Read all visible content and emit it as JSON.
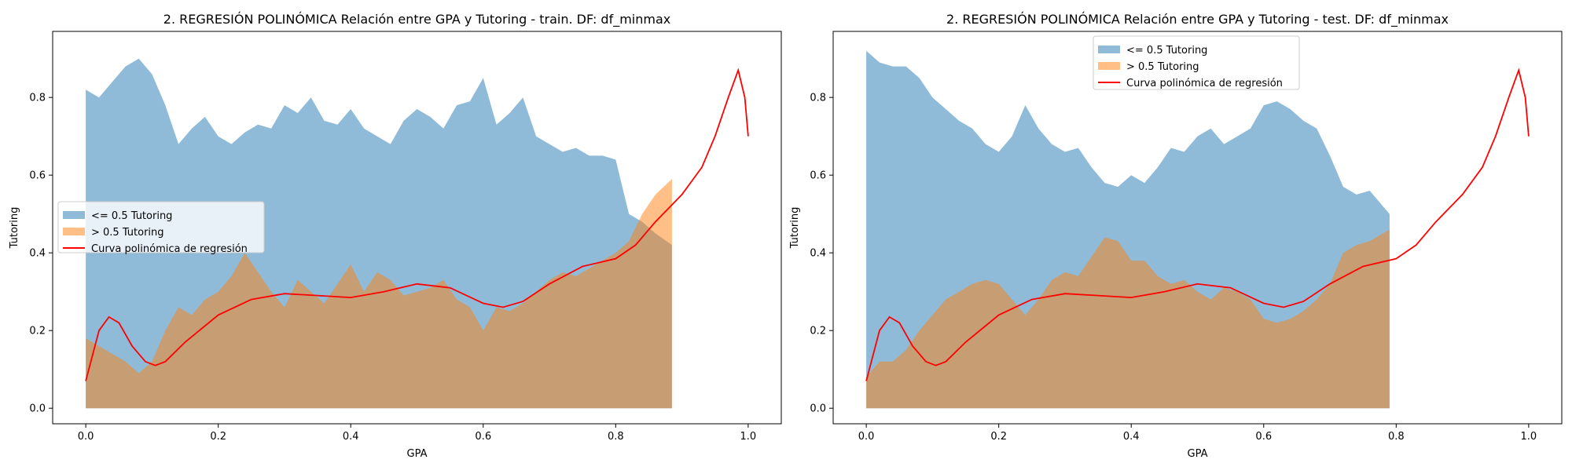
{
  "colors": {
    "blue": "#1f77b4",
    "orange": "#ff7f0e",
    "red": "#ff0000"
  },
  "chart_data": [
    {
      "type": "area",
      "title": "2. REGRESIÓN POLINÓMICA Relación entre GPA y Tutoring - train. DF: df_minmax",
      "xlabel": "GPA",
      "ylabel": "Tutoring",
      "xlim": [
        -0.05,
        1.05
      ],
      "ylim": [
        -0.04,
        0.97
      ],
      "xticks": [
        "0.0",
        "0.2",
        "0.4",
        "0.6",
        "0.8",
        "1.0"
      ],
      "yticks": [
        "0.0",
        "0.2",
        "0.4",
        "0.6",
        "0.8"
      ],
      "legend_position": "center-left",
      "legend": [
        "<= 0.5 Tutoring",
        "> 0.5 Tutoring",
        "Curva polinómica de regresión"
      ],
      "series": [
        {
          "name": "<= 0.5 Tutoring",
          "color": "blue",
          "x": [
            0.0,
            0.02,
            0.04,
            0.06,
            0.08,
            0.1,
            0.12,
            0.14,
            0.16,
            0.18,
            0.2,
            0.22,
            0.24,
            0.26,
            0.28,
            0.3,
            0.32,
            0.34,
            0.36,
            0.38,
            0.4,
            0.42,
            0.44,
            0.46,
            0.48,
            0.5,
            0.52,
            0.54,
            0.56,
            0.58,
            0.6,
            0.62,
            0.64,
            0.66,
            0.68,
            0.7,
            0.72,
            0.74,
            0.76,
            0.78,
            0.8,
            0.82,
            0.84,
            0.86,
            0.885
          ],
          "values": [
            0.82,
            0.8,
            0.84,
            0.88,
            0.9,
            0.86,
            0.78,
            0.68,
            0.72,
            0.75,
            0.7,
            0.68,
            0.71,
            0.73,
            0.72,
            0.78,
            0.76,
            0.8,
            0.74,
            0.73,
            0.77,
            0.72,
            0.7,
            0.68,
            0.74,
            0.77,
            0.75,
            0.72,
            0.78,
            0.79,
            0.85,
            0.73,
            0.76,
            0.8,
            0.7,
            0.68,
            0.66,
            0.67,
            0.65,
            0.65,
            0.64,
            0.5,
            0.48,
            0.45,
            0.42
          ]
        },
        {
          "name": "> 0.5 Tutoring",
          "color": "orange",
          "x": [
            0.0,
            0.02,
            0.04,
            0.06,
            0.08,
            0.1,
            0.12,
            0.14,
            0.16,
            0.18,
            0.2,
            0.22,
            0.24,
            0.26,
            0.28,
            0.3,
            0.32,
            0.34,
            0.36,
            0.38,
            0.4,
            0.42,
            0.44,
            0.46,
            0.48,
            0.5,
            0.52,
            0.54,
            0.56,
            0.58,
            0.6,
            0.62,
            0.64,
            0.66,
            0.68,
            0.7,
            0.72,
            0.74,
            0.76,
            0.78,
            0.8,
            0.82,
            0.84,
            0.86,
            0.885
          ],
          "values": [
            0.18,
            0.16,
            0.14,
            0.12,
            0.09,
            0.12,
            0.2,
            0.26,
            0.24,
            0.28,
            0.3,
            0.34,
            0.4,
            0.35,
            0.3,
            0.26,
            0.33,
            0.3,
            0.27,
            0.32,
            0.37,
            0.3,
            0.35,
            0.33,
            0.29,
            0.3,
            0.31,
            0.33,
            0.28,
            0.26,
            0.2,
            0.26,
            0.25,
            0.27,
            0.3,
            0.33,
            0.35,
            0.34,
            0.36,
            0.38,
            0.4,
            0.43,
            0.5,
            0.55,
            0.59
          ]
        },
        {
          "name": "Curva polinómica de regresión",
          "color": "red",
          "type": "line",
          "x": [
            0.0,
            0.02,
            0.035,
            0.05,
            0.07,
            0.09,
            0.105,
            0.12,
            0.15,
            0.2,
            0.25,
            0.3,
            0.35,
            0.4,
            0.45,
            0.5,
            0.55,
            0.6,
            0.63,
            0.66,
            0.7,
            0.75,
            0.8,
            0.83,
            0.86,
            0.9,
            0.93,
            0.95,
            0.97,
            0.985,
            0.995,
            1.0
          ],
          "values": [
            0.07,
            0.2,
            0.235,
            0.22,
            0.16,
            0.12,
            0.11,
            0.12,
            0.17,
            0.24,
            0.28,
            0.295,
            0.29,
            0.285,
            0.3,
            0.32,
            0.31,
            0.27,
            0.26,
            0.275,
            0.32,
            0.365,
            0.385,
            0.42,
            0.48,
            0.55,
            0.62,
            0.7,
            0.8,
            0.87,
            0.8,
            0.7
          ]
        }
      ]
    },
    {
      "type": "area",
      "title": "2. REGRESIÓN POLINÓMICA Relación entre GPA y Tutoring - test. DF: df_minmax",
      "xlabel": "GPA",
      "ylabel": "Tutoring",
      "xlim": [
        -0.05,
        1.05
      ],
      "ylim": [
        -0.04,
        0.97
      ],
      "xticks": [
        "0.0",
        "0.2",
        "0.4",
        "0.6",
        "0.8",
        "1.0"
      ],
      "yticks": [
        "0.0",
        "0.2",
        "0.4",
        "0.6",
        "0.8"
      ],
      "legend_position": "top-center",
      "legend": [
        "<= 0.5 Tutoring",
        "> 0.5 Tutoring",
        "Curva polinómica de regresión"
      ],
      "series": [
        {
          "name": "<= 0.5 Tutoring",
          "color": "blue",
          "x": [
            0.0,
            0.02,
            0.04,
            0.06,
            0.08,
            0.1,
            0.12,
            0.14,
            0.16,
            0.18,
            0.2,
            0.22,
            0.24,
            0.26,
            0.28,
            0.3,
            0.32,
            0.34,
            0.36,
            0.38,
            0.4,
            0.42,
            0.44,
            0.46,
            0.48,
            0.5,
            0.52,
            0.54,
            0.56,
            0.58,
            0.6,
            0.62,
            0.64,
            0.66,
            0.68,
            0.7,
            0.72,
            0.74,
            0.76,
            0.79
          ],
          "values": [
            0.92,
            0.89,
            0.88,
            0.88,
            0.85,
            0.8,
            0.77,
            0.74,
            0.72,
            0.68,
            0.66,
            0.7,
            0.78,
            0.72,
            0.68,
            0.66,
            0.67,
            0.62,
            0.58,
            0.57,
            0.6,
            0.58,
            0.62,
            0.67,
            0.66,
            0.7,
            0.72,
            0.68,
            0.7,
            0.72,
            0.78,
            0.79,
            0.77,
            0.74,
            0.72,
            0.65,
            0.57,
            0.55,
            0.56,
            0.5
          ]
        },
        {
          "name": "> 0.5 Tutoring",
          "color": "orange",
          "x": [
            0.0,
            0.02,
            0.04,
            0.06,
            0.08,
            0.1,
            0.12,
            0.14,
            0.16,
            0.18,
            0.2,
            0.22,
            0.24,
            0.26,
            0.28,
            0.3,
            0.32,
            0.34,
            0.36,
            0.38,
            0.4,
            0.42,
            0.44,
            0.46,
            0.48,
            0.5,
            0.52,
            0.54,
            0.56,
            0.58,
            0.6,
            0.62,
            0.64,
            0.66,
            0.68,
            0.7,
            0.72,
            0.74,
            0.76,
            0.79
          ],
          "values": [
            0.08,
            0.12,
            0.12,
            0.15,
            0.2,
            0.24,
            0.28,
            0.3,
            0.32,
            0.33,
            0.32,
            0.28,
            0.24,
            0.28,
            0.33,
            0.35,
            0.34,
            0.39,
            0.44,
            0.43,
            0.38,
            0.38,
            0.34,
            0.32,
            0.33,
            0.3,
            0.28,
            0.31,
            0.3,
            0.28,
            0.23,
            0.22,
            0.23,
            0.25,
            0.28,
            0.32,
            0.4,
            0.42,
            0.43,
            0.46
          ]
        },
        {
          "name": "Curva polinómica de regresión",
          "color": "red",
          "type": "line",
          "x": [
            0.0,
            0.02,
            0.035,
            0.05,
            0.07,
            0.09,
            0.105,
            0.12,
            0.15,
            0.2,
            0.25,
            0.3,
            0.35,
            0.4,
            0.45,
            0.5,
            0.55,
            0.6,
            0.63,
            0.66,
            0.7,
            0.75,
            0.8,
            0.83,
            0.86,
            0.9,
            0.93,
            0.95,
            0.97,
            0.985,
            0.995,
            1.0
          ],
          "values": [
            0.07,
            0.2,
            0.235,
            0.22,
            0.16,
            0.12,
            0.11,
            0.12,
            0.17,
            0.24,
            0.28,
            0.295,
            0.29,
            0.285,
            0.3,
            0.32,
            0.31,
            0.27,
            0.26,
            0.275,
            0.32,
            0.365,
            0.385,
            0.42,
            0.48,
            0.55,
            0.62,
            0.7,
            0.8,
            0.87,
            0.8,
            0.7
          ]
        }
      ]
    }
  ]
}
